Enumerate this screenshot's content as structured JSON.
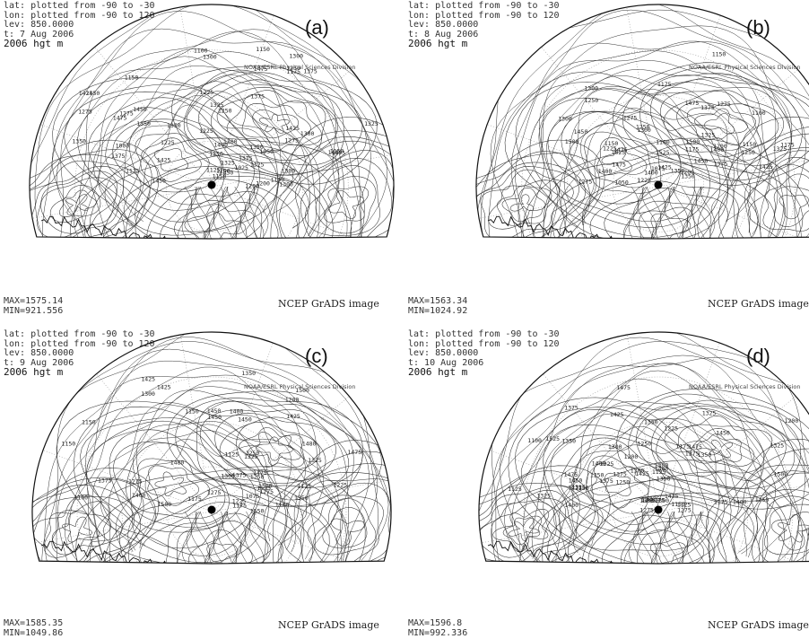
{
  "panels": [
    {
      "tag": "(a)",
      "lat": "lat: plotted from -90 to -30",
      "lon": "lon: plotted from -90 to 120",
      "lev": "lev: 850.0000",
      "time": "t: 7 Aug 2006",
      "variable": "2006 hgt m",
      "credit": "NOAA/ESRL Physical Sciences Division",
      "max": "MAX=1575.14",
      "min": "MIN=921.556",
      "footer": "NCEP GrADS image",
      "labels": [
        "1300",
        "1475",
        "1425",
        "1400",
        "1375",
        "1350",
        "1300",
        "1275",
        "1250",
        "1225",
        "1200",
        "1150",
        "1100",
        "1050",
        "1025",
        "1000",
        "1450",
        "1425",
        "1400",
        "1375",
        "1350",
        "1325",
        "1300",
        "1275",
        "1250",
        "1225",
        "1200",
        "1175",
        "1150",
        "1475",
        "1450",
        "1425",
        "1325",
        "1300",
        "1375",
        "1350",
        "1150",
        "1325",
        "1300",
        "1275",
        "1250",
        "1225",
        "1200",
        "1175",
        "1150",
        "1125",
        "1100",
        "1375",
        "1350",
        "1325",
        "1450",
        "1475",
        "1300",
        "1450"
      ]
    },
    {
      "tag": "(b)",
      "lat": "lat: plotted from -90 to -30",
      "lon": "lon: plotted from -90 to 120",
      "lev": "lev: 850.0000",
      "time": "t: 8 Aug 2006",
      "variable": "2006 hgt m",
      "credit": "NOAA/ESRL Physical Sciences Division",
      "max": "MAX=1563.34",
      "min": "MIN=1024.92",
      "footer": "NCEP GrADS image",
      "labels": [
        "1525",
        "1500",
        "1475",
        "1475",
        "1450",
        "1425",
        "1400",
        "1375",
        "1350",
        "1325",
        "1300",
        "1275",
        "1250",
        "1225",
        "1200",
        "1175",
        "1150",
        "1100",
        "1075",
        "1050",
        "1025",
        "1425",
        "1400",
        "1375",
        "1350",
        "1325",
        "1300",
        "1275",
        "1250",
        "1225",
        "1200",
        "1175",
        "1150",
        "1400",
        "1475",
        "1250",
        "1275",
        "1100",
        "1300",
        "1500",
        "1450",
        "1175",
        "1150"
      ]
    },
    {
      "tag": "(c)",
      "lat": "lat: plotted from -90 to -30",
      "lon": "lon: plotted from -90 to 120",
      "lev": "lev: 850.0000",
      "time": "t: 9 Aug 2006",
      "variable": "2006 hgt m",
      "credit": "NOAA/ESRL Physical Sciences Division",
      "max": "MAX=1585.35",
      "min": "MIN=1049.86",
      "footer": "NCEP GrADS image",
      "labels": [
        "1480",
        "1425",
        "1550",
        "1525",
        "1500",
        "1450",
        "1425",
        "1400",
        "1375",
        "1350",
        "1325",
        "1300",
        "1275",
        "1250",
        "1225",
        "1200",
        "1175",
        "1150",
        "1125",
        "1100",
        "1475",
        "1450",
        "1425",
        "1400",
        "1375",
        "1350",
        "1325",
        "1300",
        "1275",
        "1250",
        "1225",
        "1175",
        "1150",
        "1125",
        "1480",
        "1300",
        "1275",
        "1100",
        "1075",
        "1450",
        "1500",
        "1475",
        "1150"
      ]
    },
    {
      "tag": "(d)",
      "lat": "lat: plotted from -90 to -30",
      "lon": "lon: plotted from -90 to 120",
      "lev": "lev: 850.0000",
      "time": "t: 10 Aug 2006",
      "variable": "2006 hgt m",
      "credit": "NOAA/ESRL Physical Sciences Division",
      "max": "MAX=1596.8",
      "min": "MIN=992.336",
      "footer": "NCEP GrADS image",
      "labels": [
        "1475",
        "1450",
        "1425",
        "1400",
        "1375",
        "1350",
        "1325",
        "1300",
        "1275",
        "1250",
        "1225",
        "1200",
        "1175",
        "1150",
        "1125",
        "1300",
        "1525",
        "1500",
        "1475",
        "1400",
        "1375",
        "1350",
        "1325",
        "1300",
        "1425",
        "1400",
        "1375",
        "1350",
        "1325",
        "1300",
        "1275",
        "1250",
        "1225",
        "1200",
        "1175",
        "1150",
        "1125",
        "1100",
        "1350",
        "1325",
        "1300",
        "1275",
        "1250",
        "1225",
        "1200",
        "1125",
        "1275",
        "1450",
        "1475",
        "1425",
        "1400",
        "1175",
        "1200",
        "1275",
        "1250"
      ]
    }
  ]
}
